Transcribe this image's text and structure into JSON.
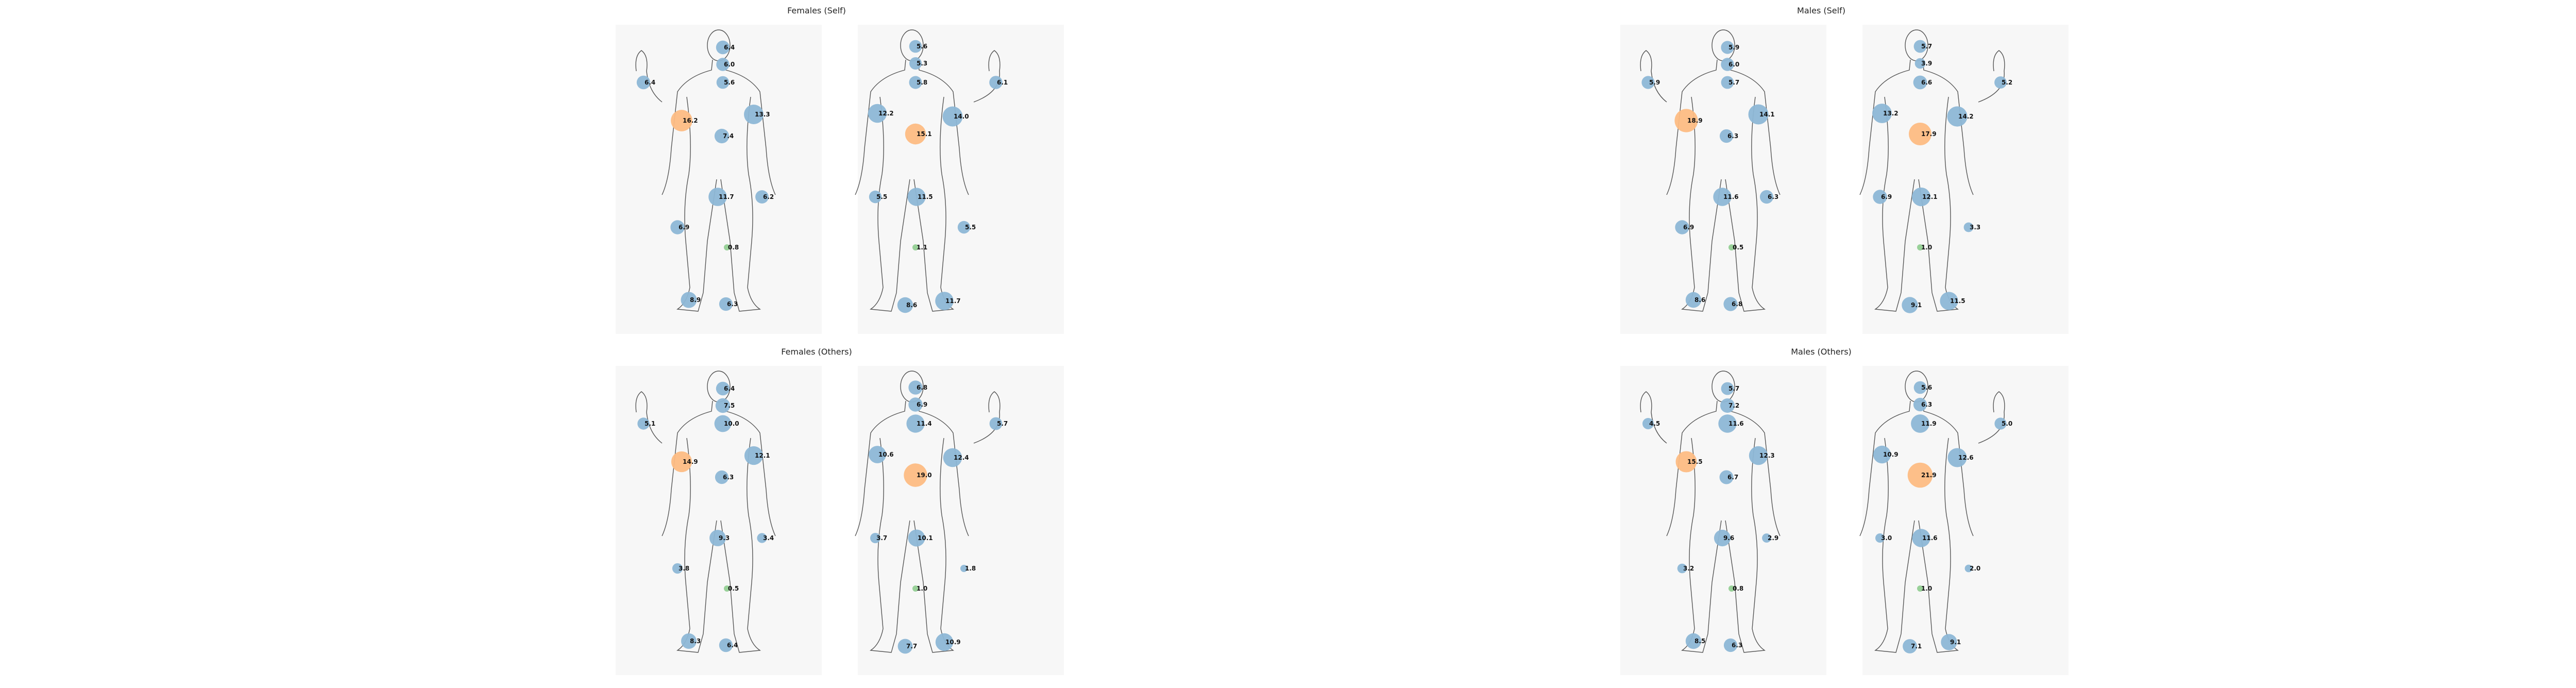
{
  "colors": {
    "blue": "#8db7d6",
    "orange": "#fdbc83",
    "green": "#93cf93",
    "outline": "#555555",
    "bg": "#f7f7f7"
  },
  "chart_data": [
    {
      "type": "bubble-body-map",
      "title": "Females (Self)",
      "front": [
        {
          "region": "head-top",
          "value": "6.4",
          "cat": "blue"
        },
        {
          "region": "neck",
          "value": "6.0",
          "cat": "blue"
        },
        {
          "region": "chest-upper",
          "value": "5.6",
          "cat": "blue"
        },
        {
          "region": "hand-right",
          "value": "6.4",
          "cat": "blue"
        },
        {
          "region": "shoulder-right",
          "value": "16.2",
          "cat": "orange"
        },
        {
          "region": "shoulder-left",
          "value": "13.3",
          "cat": "blue"
        },
        {
          "region": "abdomen",
          "value": "7.4",
          "cat": "blue"
        },
        {
          "region": "pelvis",
          "value": "11.7",
          "cat": "blue"
        },
        {
          "region": "hand-left",
          "value": "6.2",
          "cat": "blue"
        },
        {
          "region": "knee-right",
          "value": "6.9",
          "cat": "blue"
        },
        {
          "region": "knee-left",
          "value": "0.8",
          "cat": "green"
        },
        {
          "region": "foot-right",
          "value": "8.9",
          "cat": "blue"
        },
        {
          "region": "foot-left",
          "value": "6.3",
          "cat": "blue"
        }
      ],
      "back": [
        {
          "region": "head-top",
          "value": "5.6",
          "cat": "blue"
        },
        {
          "region": "neck",
          "value": "5.3",
          "cat": "blue"
        },
        {
          "region": "upper-back",
          "value": "5.8",
          "cat": "blue"
        },
        {
          "region": "hand-raised",
          "value": "6.1",
          "cat": "blue"
        },
        {
          "region": "shoulder-left",
          "value": "12.2",
          "cat": "blue"
        },
        {
          "region": "mid-back",
          "value": "15.1",
          "cat": "orange"
        },
        {
          "region": "shoulder-right",
          "value": "14.0",
          "cat": "blue"
        },
        {
          "region": "hand-left",
          "value": "5.5",
          "cat": "blue"
        },
        {
          "region": "lower-back",
          "value": "11.5",
          "cat": "blue"
        },
        {
          "region": "knee-right",
          "value": "5.5",
          "cat": "blue"
        },
        {
          "region": "knee-left",
          "value": "1.1",
          "cat": "green"
        },
        {
          "region": "foot-left",
          "value": "8.6",
          "cat": "blue"
        },
        {
          "region": "foot-right",
          "value": "11.7",
          "cat": "blue"
        }
      ]
    },
    {
      "type": "bubble-body-map",
      "title": "Males (Self)",
      "front": [
        {
          "region": "head-top",
          "value": "5.9",
          "cat": "blue"
        },
        {
          "region": "neck",
          "value": "6.0",
          "cat": "blue"
        },
        {
          "region": "chest-upper",
          "value": "5.7",
          "cat": "blue"
        },
        {
          "region": "hand-right",
          "value": "5.9",
          "cat": "blue"
        },
        {
          "region": "shoulder-right",
          "value": "18.9",
          "cat": "orange"
        },
        {
          "region": "shoulder-left",
          "value": "14.1",
          "cat": "blue"
        },
        {
          "region": "abdomen",
          "value": "6.3",
          "cat": "blue"
        },
        {
          "region": "pelvis",
          "value": "11.6",
          "cat": "blue"
        },
        {
          "region": "hand-left",
          "value": "6.3",
          "cat": "blue"
        },
        {
          "region": "knee-right",
          "value": "6.9",
          "cat": "blue"
        },
        {
          "region": "knee-left",
          "value": "0.5",
          "cat": "green"
        },
        {
          "region": "foot-right",
          "value": "8.6",
          "cat": "blue"
        },
        {
          "region": "foot-left",
          "value": "6.8",
          "cat": "blue"
        }
      ],
      "back": [
        {
          "region": "head-top",
          "value": "5.7",
          "cat": "blue"
        },
        {
          "region": "neck",
          "value": "3.9",
          "cat": "blue"
        },
        {
          "region": "upper-back",
          "value": "6.6",
          "cat": "blue"
        },
        {
          "region": "hand-raised",
          "value": "5.2",
          "cat": "blue"
        },
        {
          "region": "shoulder-left",
          "value": "13.2",
          "cat": "blue"
        },
        {
          "region": "mid-back",
          "value": "17.9",
          "cat": "orange"
        },
        {
          "region": "shoulder-right",
          "value": "14.2",
          "cat": "blue"
        },
        {
          "region": "hand-left",
          "value": "6.9",
          "cat": "blue"
        },
        {
          "region": "lower-back",
          "value": "12.1",
          "cat": "blue"
        },
        {
          "region": "knee-right",
          "value": "3.3",
          "cat": "blue"
        },
        {
          "region": "knee-left",
          "value": "1.0",
          "cat": "green"
        },
        {
          "region": "foot-left",
          "value": "9.1",
          "cat": "blue"
        },
        {
          "region": "foot-right",
          "value": "11.5",
          "cat": "blue"
        }
      ]
    },
    {
      "type": "bubble-body-map",
      "title": "Females (Others)",
      "front": [
        {
          "region": "head-top",
          "value": "6.4",
          "cat": "blue"
        },
        {
          "region": "neck",
          "value": "7.5",
          "cat": "blue"
        },
        {
          "region": "chest-upper",
          "value": "10.0",
          "cat": "blue"
        },
        {
          "region": "hand-right",
          "value": "5.1",
          "cat": "blue"
        },
        {
          "region": "shoulder-right",
          "value": "14.9",
          "cat": "orange"
        },
        {
          "region": "shoulder-left",
          "value": "12.1",
          "cat": "blue"
        },
        {
          "region": "abdomen",
          "value": "6.3",
          "cat": "blue"
        },
        {
          "region": "pelvis",
          "value": "9.3",
          "cat": "blue"
        },
        {
          "region": "hand-left",
          "value": "3.4",
          "cat": "blue"
        },
        {
          "region": "knee-right",
          "value": "3.8",
          "cat": "blue"
        },
        {
          "region": "knee-left",
          "value": "0.5",
          "cat": "green"
        },
        {
          "region": "foot-right",
          "value": "8.3",
          "cat": "blue"
        },
        {
          "region": "foot-left",
          "value": "6.4",
          "cat": "blue"
        }
      ],
      "back": [
        {
          "region": "head-top",
          "value": "6.8",
          "cat": "blue"
        },
        {
          "region": "neck",
          "value": "6.9",
          "cat": "blue"
        },
        {
          "region": "upper-back",
          "value": "11.4",
          "cat": "blue"
        },
        {
          "region": "hand-raised",
          "value": "5.7",
          "cat": "blue"
        },
        {
          "region": "shoulder-left",
          "value": "10.6",
          "cat": "blue"
        },
        {
          "region": "mid-back",
          "value": "19.0",
          "cat": "orange"
        },
        {
          "region": "shoulder-right",
          "value": "12.4",
          "cat": "blue"
        },
        {
          "region": "hand-left",
          "value": "3.7",
          "cat": "blue"
        },
        {
          "region": "lower-back",
          "value": "10.1",
          "cat": "blue"
        },
        {
          "region": "knee-right",
          "value": "1.8",
          "cat": "blue"
        },
        {
          "region": "knee-left",
          "value": "1.0",
          "cat": "green"
        },
        {
          "region": "foot-left",
          "value": "7.7",
          "cat": "blue"
        },
        {
          "region": "foot-right",
          "value": "10.9",
          "cat": "blue"
        }
      ]
    },
    {
      "type": "bubble-body-map",
      "title": "Males (Others)",
      "front": [
        {
          "region": "head-top",
          "value": "5.7",
          "cat": "blue"
        },
        {
          "region": "neck",
          "value": "7.2",
          "cat": "blue"
        },
        {
          "region": "chest-upper",
          "value": "11.6",
          "cat": "blue"
        },
        {
          "region": "hand-right",
          "value": "4.5",
          "cat": "blue"
        },
        {
          "region": "shoulder-right",
          "value": "15.5",
          "cat": "orange"
        },
        {
          "region": "shoulder-left",
          "value": "12.3",
          "cat": "blue"
        },
        {
          "region": "abdomen",
          "value": "6.7",
          "cat": "blue"
        },
        {
          "region": "pelvis",
          "value": "9.6",
          "cat": "blue"
        },
        {
          "region": "hand-left",
          "value": "2.9",
          "cat": "blue"
        },
        {
          "region": "knee-right",
          "value": "3.2",
          "cat": "blue"
        },
        {
          "region": "knee-left",
          "value": "0.8",
          "cat": "green"
        },
        {
          "region": "foot-right",
          "value": "8.5",
          "cat": "blue"
        },
        {
          "region": "foot-left",
          "value": "6.3",
          "cat": "blue"
        }
      ],
      "back": [
        {
          "region": "head-top",
          "value": "5.6",
          "cat": "blue"
        },
        {
          "region": "neck",
          "value": "6.3",
          "cat": "blue"
        },
        {
          "region": "upper-back",
          "value": "11.9",
          "cat": "blue"
        },
        {
          "region": "hand-raised",
          "value": "5.0",
          "cat": "blue"
        },
        {
          "region": "shoulder-left",
          "value": "10.9",
          "cat": "blue"
        },
        {
          "region": "mid-back",
          "value": "21.9",
          "cat": "orange"
        },
        {
          "region": "shoulder-right",
          "value": "12.6",
          "cat": "blue"
        },
        {
          "region": "hand-left",
          "value": "3.0",
          "cat": "blue"
        },
        {
          "region": "lower-back",
          "value": "11.6",
          "cat": "blue"
        },
        {
          "region": "knee-right",
          "value": "2.0",
          "cat": "blue"
        },
        {
          "region": "knee-left",
          "value": "1.0",
          "cat": "green"
        },
        {
          "region": "foot-left",
          "value": "7.1",
          "cat": "blue"
        },
        {
          "region": "foot-right",
          "value": "9.1",
          "cat": "blue"
        }
      ]
    }
  ]
}
